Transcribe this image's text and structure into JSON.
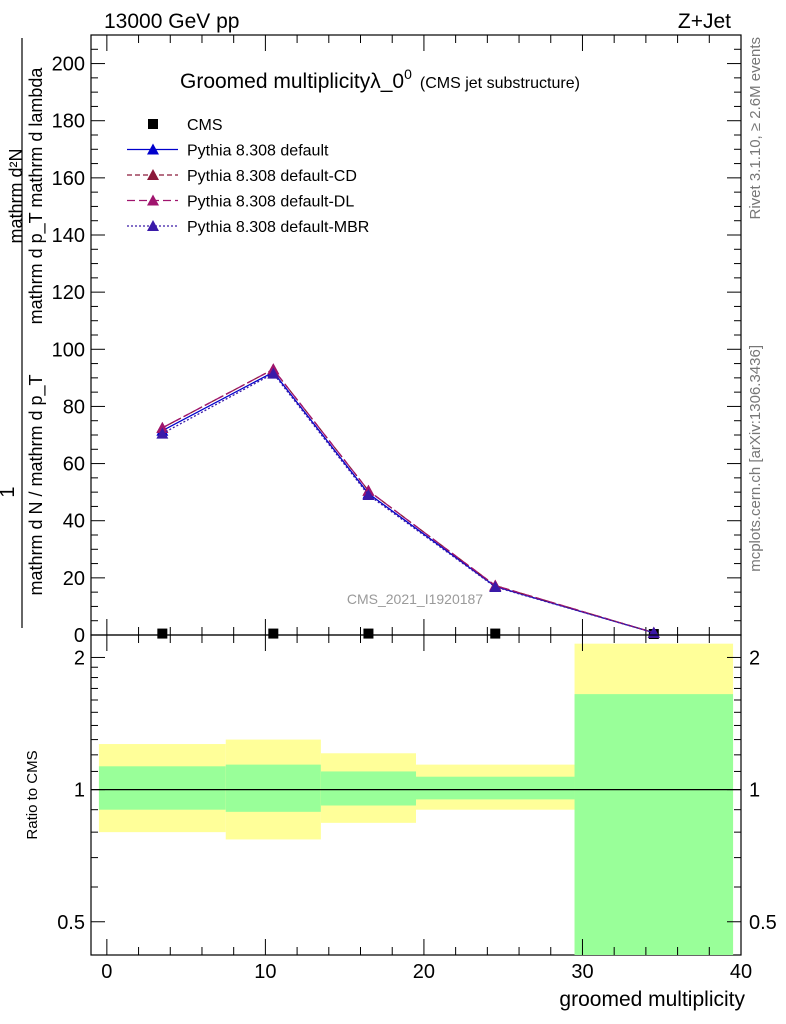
{
  "header": {
    "energy_label": "13000 GeV pp",
    "process_label": "Z+Jet"
  },
  "title": {
    "main": "Groomed multiplicityλ_0",
    "superscript": "0",
    "sub": "(CMS jet substructure)"
  },
  "side_notes": {
    "rivet": "Rivet 3.1.10, ≥ 2.6M events",
    "mcplots": "mcplots.cern.ch [arXiv:1306.3436]"
  },
  "watermark": "CMS_2021_I1920187",
  "colors": {
    "default": "#0000cc",
    "default_cd": "#8b1a3a",
    "default_dl": "#a0146e",
    "default_mbr": "#3a1aa8",
    "band_outer": "#ffff99",
    "band_inner": "#99ff99"
  },
  "chart_data": [
    {
      "type": "line",
      "panel": "main",
      "title": "Groomed multiplicityλ_0",
      "xlabel": "groomed multiplicity",
      "ylabel": {
        "numerator": "1",
        "denominator": "mathrm d N / mathrm d p_T",
        "right_numerator": "mathrm d²N",
        "right_denominator": "mathrm d p_T mathrm d lambda"
      },
      "xlim": [
        -1,
        40
      ],
      "ylim": [
        0,
        210
      ],
      "yticks": [
        20,
        40,
        60,
        80,
        100,
        120,
        140,
        160,
        180,
        200
      ],
      "legend_position": "top-left",
      "series": [
        {
          "name": "CMS",
          "marker": "square",
          "x": [
            3.5,
            10.5,
            16.5,
            24.5,
            34.5
          ],
          "values": [
            0.5,
            0.5,
            0.5,
            0.5,
            0.0
          ]
        },
        {
          "name": "Pythia 8.308 default",
          "x": [
            3.5,
            10.5,
            16.5,
            24.5,
            34.5
          ],
          "values": [
            71.5,
            92,
            49.5,
            17,
            0.8
          ]
        },
        {
          "name": "Pythia 8.308 default-CD",
          "x": [
            3.5,
            10.5,
            16.5,
            24.5,
            34.5
          ],
          "values": [
            72.5,
            93,
            50.5,
            17.3,
            0.8
          ]
        },
        {
          "name": "Pythia 8.308 default-DL",
          "x": [
            3.5,
            10.5,
            16.5,
            24.5,
            34.5
          ],
          "values": [
            72.5,
            93,
            50.5,
            17.3,
            0.8
          ]
        },
        {
          "name": "Pythia 8.308 default-MBR",
          "x": [
            3.5,
            10.5,
            16.5,
            24.5,
            34.5
          ],
          "values": [
            70.5,
            91.5,
            49,
            16.8,
            0.8
          ]
        }
      ]
    },
    {
      "type": "area",
      "panel": "ratio",
      "ylabel": "Ratio to CMS",
      "xlabel": "groomed multiplicity",
      "xlim": [
        -1,
        40
      ],
      "ylim": [
        0.42,
        2.25
      ],
      "ylog": true,
      "yticks": [
        0.5,
        1,
        2
      ],
      "xticks": [
        0,
        10,
        20,
        30,
        40
      ],
      "reference_line": 1,
      "bins": [
        {
          "x": [
            -0.5,
            7.5
          ],
          "outer": [
            0.8,
            1.27
          ],
          "inner": [
            0.9,
            1.13
          ]
        },
        {
          "x": [
            7.5,
            13.5
          ],
          "outer": [
            0.77,
            1.3
          ],
          "inner": [
            0.89,
            1.14
          ]
        },
        {
          "x": [
            13.5,
            19.5
          ],
          "outer": [
            0.84,
            1.21
          ],
          "inner": [
            0.92,
            1.1
          ]
        },
        {
          "x": [
            19.5,
            29.5
          ],
          "outer": [
            0.9,
            1.14
          ],
          "inner": [
            0.95,
            1.07
          ]
        },
        {
          "x": [
            29.5,
            39.5
          ],
          "outer": [
            0.4,
            2.15
          ],
          "inner": [
            0.4,
            1.65
          ]
        }
      ]
    }
  ]
}
